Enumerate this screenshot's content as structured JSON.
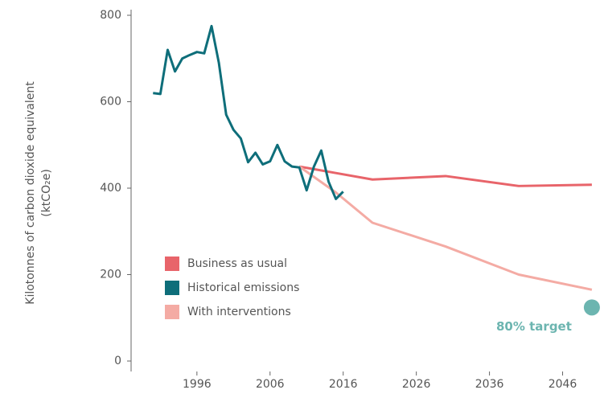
{
  "chart_data": {
    "type": "line",
    "y_label": [
      "Kilotonnes of carbon dioxide equivalent",
      "(ktCO₂e)"
    ],
    "xlim": [
      1987,
      2051
    ],
    "xticks": [
      1996,
      2006,
      2016,
      2026,
      2036,
      2046
    ],
    "ylim": [
      0,
      800
    ],
    "yticks": [
      0,
      200,
      400,
      600,
      800
    ],
    "grid": false,
    "legend": "lower left",
    "series": [
      {
        "name": "Business as usual",
        "color": "#e8646a",
        "x": [
          2010,
          2015,
          2020,
          2030,
          2040,
          2050
        ],
        "values": [
          450,
          435,
          420,
          428,
          405,
          408
        ]
      },
      {
        "name": "Historical emissions",
        "color": "#0e6e7a",
        "x": [
          1990,
          1991,
          1992,
          1993,
          1994,
          1995,
          1996,
          1997,
          1998,
          1999,
          2000,
          2001,
          2002,
          2003,
          2004,
          2005,
          2006,
          2007,
          2008,
          2009,
          2010,
          2011,
          2012,
          2013,
          2014,
          2015,
          2016
        ],
        "values": [
          620,
          618,
          720,
          670,
          700,
          708,
          715,
          712,
          775,
          690,
          570,
          535,
          515,
          460,
          482,
          455,
          462,
          500,
          462,
          450,
          448,
          395,
          450,
          487,
          415,
          375,
          392
        ]
      },
      {
        "name": "With interventions",
        "color": "#f4aba4",
        "x": [
          2010,
          2015,
          2020,
          2030,
          2040,
          2050
        ],
        "values": [
          450,
          390,
          320,
          265,
          200,
          165
        ]
      }
    ],
    "target": {
      "label": "80% target",
      "x": 2050,
      "value": 124,
      "color": "#6cb5b0"
    }
  }
}
